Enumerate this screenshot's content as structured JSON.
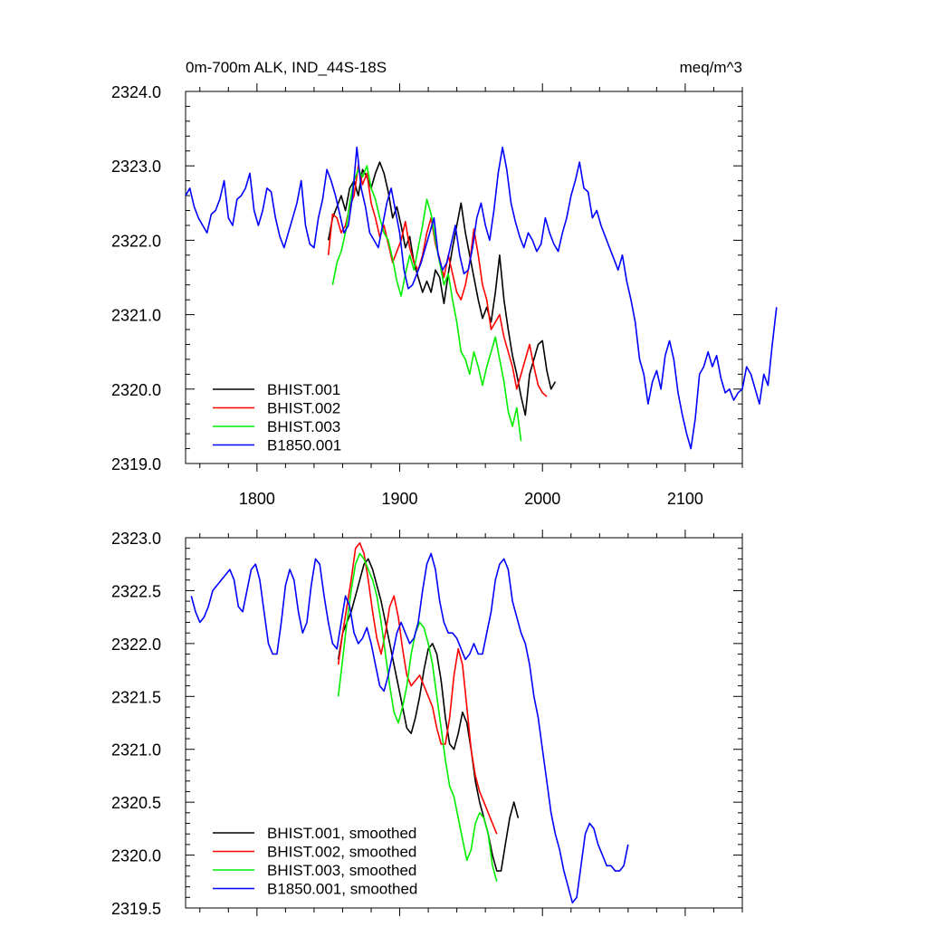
{
  "chart_data": [
    {
      "type": "line",
      "title": "0m-700m ALK, IND_44S-18S",
      "units": "meq/m^3",
      "xlim": [
        1750,
        2140
      ],
      "ylim": [
        2319.0,
        2324.0
      ],
      "x_ticks": [
        1800,
        1900,
        2000,
        2100
      ],
      "x_tick_labels": [
        "1800",
        "1900",
        "2000",
        "2100"
      ],
      "y_ticks": [
        2319.0,
        2320.0,
        2321.0,
        2322.0,
        2323.0,
        2324.0
      ],
      "y_tick_labels": [
        "2319.0",
        "2320.0",
        "2321.0",
        "2322.0",
        "2323.0",
        "2324.0"
      ],
      "legend_position": "bottom-left",
      "grid": false,
      "series": [
        {
          "name": "BHIST.001",
          "color": "#000000",
          "x_start": 1850,
          "values": [
            2322.0,
            2322.3,
            2322.45,
            2322.6,
            2322.4,
            2322.7,
            2322.8,
            2322.6,
            2322.95,
            2322.85,
            2322.7,
            2322.9,
            2323.05,
            2322.9,
            2322.65,
            2322.3,
            2322.45,
            2322.2,
            2321.9,
            2322.05,
            2321.7,
            2321.5,
            2321.3,
            2321.45,
            2321.3,
            2321.6,
            2321.5,
            2321.15,
            2321.55,
            2321.9,
            2322.2,
            2322.5,
            2322.1,
            2321.8,
            2321.5,
            2321.2,
            2320.95,
            2321.1,
            2320.9,
            2321.3,
            2321.8,
            2321.2,
            2320.8,
            2320.45,
            2320.2,
            2319.9,
            2319.65,
            2320.2,
            2320.4,
            2320.6,
            2320.65,
            2320.25,
            2320.0,
            2320.1
          ]
        },
        {
          "name": "BHIST.002",
          "color": "#ff0000",
          "x_start": 1850,
          "values": [
            2321.8,
            2322.35,
            2322.3,
            2322.1,
            2322.2,
            2322.45,
            2322.6,
            2323.0,
            2322.75,
            2322.9,
            2322.5,
            2322.3,
            2322.05,
            2322.2,
            2321.95,
            2321.7,
            2321.85,
            2322.0,
            2322.25,
            2321.9,
            2321.7,
            2321.6,
            2321.8,
            2322.1,
            2322.3,
            2321.95,
            2321.75,
            2321.5,
            2321.8,
            2321.55,
            2321.3,
            2321.2,
            2321.4,
            2321.7,
            2322.15,
            2321.8,
            2321.4,
            2321.2,
            2320.8,
            2320.9,
            2321.0,
            2320.7,
            2320.5,
            2320.3,
            2320.0,
            2320.2,
            2320.4,
            2320.6,
            2320.3,
            2320.05,
            2319.95,
            2319.9
          ]
        },
        {
          "name": "BHIST.003",
          "color": "#00ee00",
          "x_start": 1853,
          "values": [
            2321.4,
            2321.7,
            2321.85,
            2322.1,
            2322.5,
            2322.8,
            2322.95,
            2322.85,
            2323.0,
            2322.7,
            2322.55,
            2322.3,
            2322.1,
            2322.0,
            2321.75,
            2321.45,
            2321.25,
            2321.55,
            2321.8,
            2321.6,
            2321.9,
            2322.2,
            2322.55,
            2322.35,
            2322.0,
            2321.7,
            2321.4,
            2321.55,
            2321.2,
            2320.9,
            2320.5,
            2320.4,
            2320.2,
            2320.5,
            2320.3,
            2320.05,
            2320.3,
            2320.5,
            2320.7,
            2320.4,
            2320.1,
            2319.7,
            2319.5,
            2319.75,
            2319.3
          ]
        },
        {
          "name": "B1850.001",
          "color": "#0000ff",
          "x_start": 1750,
          "values": [
            2322.6,
            2322.7,
            2322.45,
            2322.3,
            2322.2,
            2322.1,
            2322.35,
            2322.4,
            2322.55,
            2322.8,
            2322.3,
            2322.2,
            2322.55,
            2322.6,
            2322.7,
            2322.9,
            2322.4,
            2322.2,
            2322.4,
            2322.7,
            2322.65,
            2322.3,
            2322.05,
            2321.9,
            2322.1,
            2322.3,
            2322.5,
            2322.8,
            2322.2,
            2321.95,
            2321.9,
            2322.3,
            2322.55,
            2322.95,
            2322.8,
            2322.6,
            2322.35,
            2322.1,
            2322.2,
            2322.6,
            2323.25,
            2322.7,
            2322.45,
            2322.1,
            2322.0,
            2321.9,
            2322.2,
            2322.5,
            2322.7,
            2322.4,
            2322.1,
            2321.6,
            2321.35,
            2321.4,
            2321.55,
            2321.7,
            2321.9,
            2322.1,
            2322.3,
            2321.8,
            2321.6,
            2321.7,
            2321.95,
            2322.2,
            2321.8,
            2321.55,
            2321.6,
            2321.9,
            2322.3,
            2322.5,
            2322.2,
            2322.0,
            2322.4,
            2322.9,
            2323.25,
            2322.95,
            2322.5,
            2322.25,
            2322.05,
            2321.9,
            2322.1,
            2322.0,
            2321.85,
            2321.95,
            2322.3,
            2322.1,
            2321.95,
            2321.85,
            2322.1,
            2322.3,
            2322.6,
            2322.8,
            2323.05,
            2322.7,
            2322.65,
            2322.3,
            2322.4,
            2322.2,
            2322.05,
            2321.9,
            2321.75,
            2321.6,
            2321.8,
            2321.45,
            2321.2,
            2320.9,
            2320.4,
            2320.2,
            2319.8,
            2320.1,
            2320.25,
            2320.0,
            2320.45,
            2320.65,
            2320.4,
            2319.95,
            2319.65,
            2319.4,
            2319.2,
            2319.6,
            2320.2,
            2320.3,
            2320.5,
            2320.3,
            2320.45,
            2320.15,
            2319.95,
            2320.0,
            2319.85,
            2319.95,
            2320.0,
            2320.3,
            2320.2,
            2320.0,
            2319.8,
            2320.2,
            2320.05,
            2320.6,
            2321.1
          ]
        }
      ]
    },
    {
      "type": "line",
      "xlim": [
        1750,
        2140
      ],
      "ylim": [
        2319.5,
        2323.0
      ],
      "x_ticks": [
        1800,
        1900,
        2000,
        2100
      ],
      "y_ticks": [
        2319.5,
        2320.0,
        2320.5,
        2321.0,
        2321.5,
        2322.0,
        2322.5,
        2323.0
      ],
      "y_tick_labels": [
        "2319.5",
        "2320.0",
        "2320.5",
        "2321.0",
        "2321.5",
        "2322.0",
        "2322.5",
        "2323.0"
      ],
      "legend_position": "bottom-left",
      "grid": false,
      "series": [
        {
          "name": "BHIST.001, smoothed",
          "color": "#000000",
          "x_start": 1857,
          "values": [
            2321.85,
            2322.1,
            2322.2,
            2322.3,
            2322.45,
            2322.6,
            2322.75,
            2322.8,
            2322.7,
            2322.55,
            2322.4,
            2322.2,
            2322.0,
            2321.8,
            2321.6,
            2321.4,
            2321.2,
            2321.15,
            2321.3,
            2321.5,
            2321.75,
            2321.95,
            2322.0,
            2321.9,
            2321.65,
            2321.3,
            2321.05,
            2321.0,
            2321.15,
            2321.35,
            2321.25,
            2321.0,
            2320.7,
            2320.5,
            2320.35,
            2320.2,
            2320.0,
            2319.85,
            2319.85,
            2320.1,
            2320.35,
            2320.5,
            2320.35
          ]
        },
        {
          "name": "BHIST.002, smoothed",
          "color": "#ff0000",
          "x_start": 1857,
          "values": [
            2321.8,
            2322.1,
            2322.35,
            2322.6,
            2322.9,
            2322.95,
            2322.85,
            2322.6,
            2322.3,
            2322.05,
            2321.9,
            2322.1,
            2322.35,
            2322.45,
            2322.25,
            2321.95,
            2321.7,
            2321.6,
            2321.65,
            2321.7,
            2321.6,
            2321.5,
            2321.4,
            2321.2,
            2321.05,
            2321.05,
            2321.3,
            2321.7,
            2321.95,
            2321.8,
            2321.4,
            2321.0,
            2320.75,
            2320.6,
            2320.5,
            2320.4,
            2320.3,
            2320.2
          ]
        },
        {
          "name": "BHIST.003, smoothed",
          "color": "#00ee00",
          "x_start": 1857,
          "values": [
            2321.5,
            2321.85,
            2322.2,
            2322.5,
            2322.75,
            2322.85,
            2322.8,
            2322.7,
            2322.6,
            2322.45,
            2322.2,
            2321.9,
            2321.6,
            2321.35,
            2321.25,
            2321.4,
            2321.6,
            2321.9,
            2322.1,
            2322.2,
            2322.15,
            2322.0,
            2321.8,
            2321.5,
            2321.2,
            2320.9,
            2320.65,
            2320.55,
            2320.35,
            2320.15,
            2319.95,
            2320.05,
            2320.3,
            2320.4,
            2320.35,
            2320.2,
            2319.9,
            2319.75
          ]
        },
        {
          "name": "B1850.001, smoothed",
          "color": "#0000ff",
          "x_start": 1754,
          "values": [
            2322.45,
            2322.3,
            2322.2,
            2322.25,
            2322.35,
            2322.5,
            2322.55,
            2322.6,
            2322.65,
            2322.7,
            2322.6,
            2322.35,
            2322.3,
            2322.5,
            2322.7,
            2322.75,
            2322.6,
            2322.3,
            2322.0,
            2321.9,
            2321.9,
            2322.2,
            2322.55,
            2322.7,
            2322.6,
            2322.3,
            2322.1,
            2322.2,
            2322.55,
            2322.8,
            2322.75,
            2322.45,
            2322.2,
            2322.0,
            2321.95,
            2322.2,
            2322.45,
            2322.35,
            2322.1,
            2322.0,
            2322.05,
            2322.15,
            2322.0,
            2321.8,
            2321.6,
            2321.55,
            2321.7,
            2321.9,
            2322.1,
            2322.2,
            2322.1,
            2322.0,
            2322.05,
            2322.2,
            2322.5,
            2322.75,
            2322.85,
            2322.7,
            2322.4,
            2322.2,
            2322.1,
            2322.1,
            2322.05,
            2321.95,
            2321.85,
            2321.9,
            2322.0,
            2321.9,
            2321.9,
            2322.1,
            2322.3,
            2322.6,
            2322.75,
            2322.8,
            2322.7,
            2322.4,
            2322.25,
            2322.1,
            2322.0,
            2321.8,
            2321.5,
            2321.3,
            2321.0,
            2320.7,
            2320.4,
            2320.2,
            2320.05,
            2319.85,
            2319.7,
            2319.55,
            2319.6,
            2319.9,
            2320.2,
            2320.3,
            2320.25,
            2320.1,
            2320.0,
            2319.9,
            2319.9,
            2319.85,
            2319.85,
            2319.9,
            2320.1
          ]
        }
      ]
    }
  ]
}
